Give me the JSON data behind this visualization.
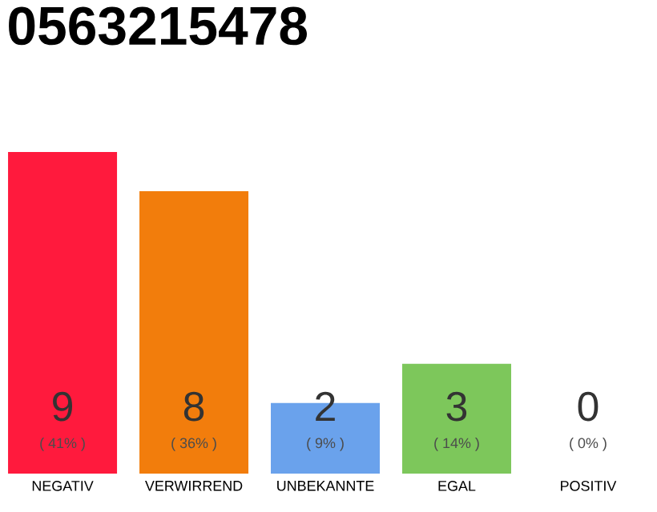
{
  "chart_data": {
    "type": "bar",
    "title": "0563215478",
    "categories": [
      "NEGATIV",
      "VERWIRREND",
      "UNBEKANNTE",
      "EGAL",
      "POSITIV"
    ],
    "values": [
      41,
      36,
      9,
      14,
      0
    ],
    "colors": [
      "#ff1a3d",
      "#f27d0c",
      "#6aa2ec",
      "#7dc75b",
      "#d0d0d0"
    ],
    "value_labels": [
      "( 41% )",
      "( 36% )",
      "( 9% )",
      "( 14% )",
      "( 0% )"
    ],
    "annotations": [
      "9",
      "8",
      "2",
      "3",
      "0"
    ],
    "tick_labels": "x"
  }
}
